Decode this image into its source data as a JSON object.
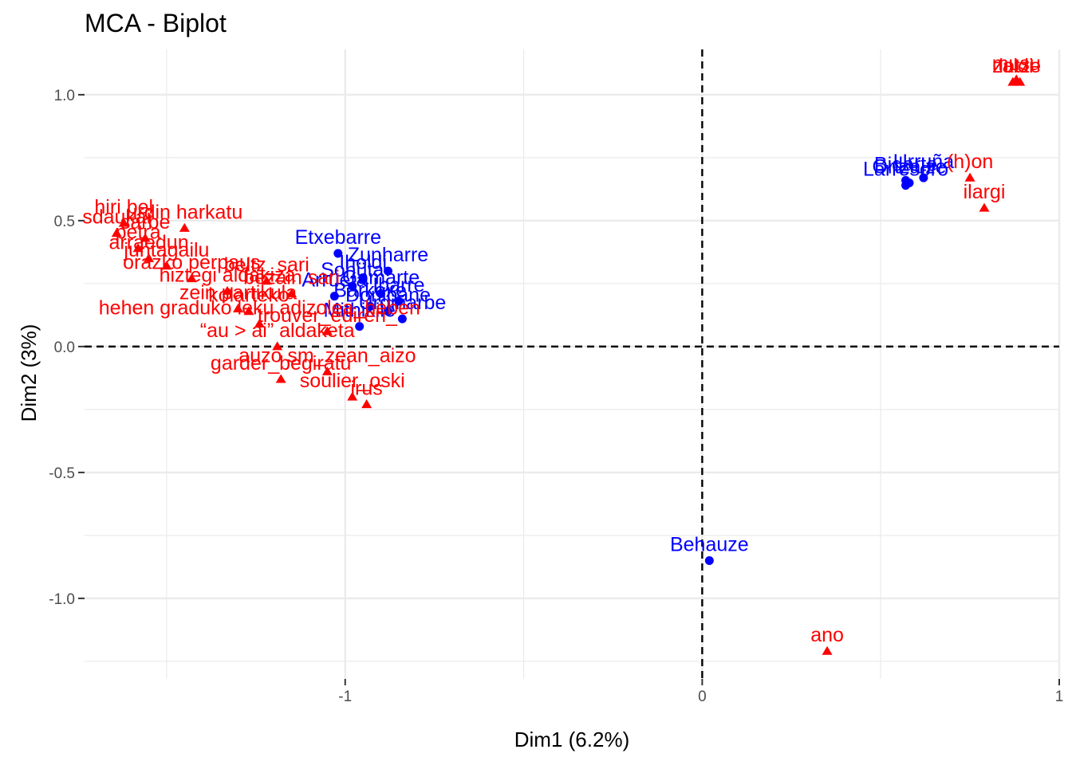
{
  "chart_data": {
    "type": "scatter",
    "title": "MCA - Biplot",
    "xlabel": "Dim1 (6.2%)",
    "ylabel": "Dim2 (3%)",
    "xlim": [
      -1.73,
      1.0
    ],
    "ylim": [
      -1.32,
      1.18
    ],
    "x_ticks": [
      -1,
      0,
      1
    ],
    "x_tick_labels": [
      "-1",
      "0",
      "1"
    ],
    "y_ticks": [
      -1.0,
      -0.5,
      0.0,
      0.5,
      1.0
    ],
    "y_tick_labels": [
      "-1.0",
      "-0.5",
      "0.0",
      "0.5",
      "1.0"
    ],
    "grid": true,
    "reference_lines": {
      "x": 0,
      "y": 0,
      "style": "dashed"
    },
    "colors": {
      "individuals": "#0000ff",
      "variables": "#ff0000",
      "grid": "#ebebeb",
      "axis_text": "#4d4d4d"
    },
    "series": [
      {
        "marker": "circle",
        "color": "#0000ff",
        "points": [
          {
            "x": 0.02,
            "y": -0.85,
            "label": "Behauze"
          },
          {
            "x": 0.57,
            "y": 0.66,
            "label": "Bidarte"
          },
          {
            "x": 0.57,
            "y": 0.64,
            "label": "Larresoro"
          },
          {
            "x": 0.62,
            "y": 0.67,
            "label": "Urruña"
          },
          {
            "x": 0.58,
            "y": 0.65,
            "label": "Ortzaize"
          },
          {
            "x": -1.02,
            "y": 0.37,
            "label": "Etxebarre"
          },
          {
            "x": -0.88,
            "y": 0.3,
            "label": "Zunharre"
          },
          {
            "x": -0.95,
            "y": 0.27,
            "label": "Iholdi"
          },
          {
            "x": -0.98,
            "y": 0.24,
            "label": "Sohüta"
          },
          {
            "x": -0.9,
            "y": 0.21,
            "label": "Gamarte"
          },
          {
            "x": -0.85,
            "y": 0.18,
            "label": "Ibarre"
          },
          {
            "x": -0.93,
            "y": 0.16,
            "label": "Barkoxe"
          },
          {
            "x": -0.84,
            "y": 0.11,
            "label": "Urdiñarbe"
          },
          {
            "x": -0.96,
            "y": 0.08,
            "label": "Mithikile"
          },
          {
            "x": -1.03,
            "y": 0.2,
            "label": "Arrueta"
          },
          {
            "x": -0.88,
            "y": 0.14,
            "label": "Donibane"
          }
        ]
      },
      {
        "marker": "triangle",
        "color": "#ff0000",
        "points": [
          {
            "x": 0.88,
            "y": 1.06,
            "label": "musu"
          },
          {
            "x": 0.87,
            "y": 1.05,
            "label": "zaldi"
          },
          {
            "x": 0.89,
            "y": 1.05,
            "label": "lotze"
          },
          {
            "x": 0.75,
            "y": 0.67,
            "label": "(h)on"
          },
          {
            "x": 0.79,
            "y": 0.55,
            "label": "ilargi"
          },
          {
            "x": 0.35,
            "y": -1.21,
            "label": "ano"
          },
          {
            "x": -0.94,
            "y": -0.23,
            "label": "irus"
          },
          {
            "x": -0.98,
            "y": -0.2,
            "label": "soulier_oski"
          },
          {
            "x": -1.05,
            "y": -0.1,
            "label": "auzo sm_zean_aizo"
          },
          {
            "x": -1.18,
            "y": -0.13,
            "label": "garder_begiratu"
          },
          {
            "x": -1.19,
            "y": 0.0,
            "label": "“au > ai” aldaketa"
          },
          {
            "x": -1.24,
            "y": 0.09,
            "label": "hehen graduko leku adizolea_heben"
          },
          {
            "x": -1.05,
            "y": 0.06,
            "label": "trouver_edireri_"
          },
          {
            "x": -1.3,
            "y": 0.15,
            "label": "zein partikula"
          },
          {
            "x": -1.33,
            "y": 0.22,
            "label": "hiztegi aldakiza"
          },
          {
            "x": -1.43,
            "y": 0.27,
            "label": "orazko perpaus"
          },
          {
            "x": -1.5,
            "y": 0.32,
            "label": "juntagailu"
          },
          {
            "x": -1.55,
            "y": 0.35,
            "label": "arraedun"
          },
          {
            "x": -1.58,
            "y": 0.39,
            "label": "petra"
          },
          {
            "x": -1.64,
            "y": 0.45,
            "label": "sdaukai"
          },
          {
            "x": -1.62,
            "y": 0.49,
            "label": "hiri bel"
          },
          {
            "x": -1.56,
            "y": 0.43,
            "label": "sarbe"
          },
          {
            "x": -1.45,
            "y": 0.47,
            "label": "urdin harkatu"
          },
          {
            "x": -1.22,
            "y": 0.26,
            "label": "beltz_sari"
          },
          {
            "x": -1.27,
            "y": 0.14,
            "label": "kolarteko"
          },
          {
            "x": -1.15,
            "y": 0.21,
            "label": "bezain sari"
          }
        ]
      }
    ]
  }
}
